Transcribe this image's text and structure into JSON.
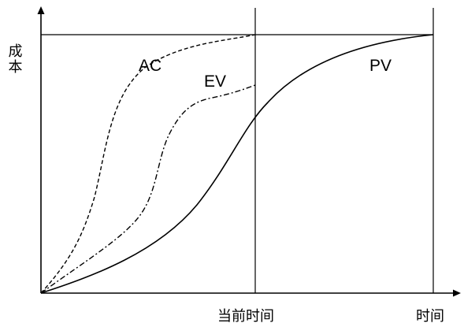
{
  "y_axis_label": "成本",
  "x_axis_label": "时间",
  "current_time_label": "当前时间",
  "curves": {
    "ac": {
      "label": "AC",
      "style": "dashed"
    },
    "ev": {
      "label": "EV",
      "style": "dash-dot"
    },
    "pv": {
      "label": "PV",
      "style": "solid"
    }
  },
  "colors": {
    "ink": "#000000",
    "background": "#ffffff"
  }
}
